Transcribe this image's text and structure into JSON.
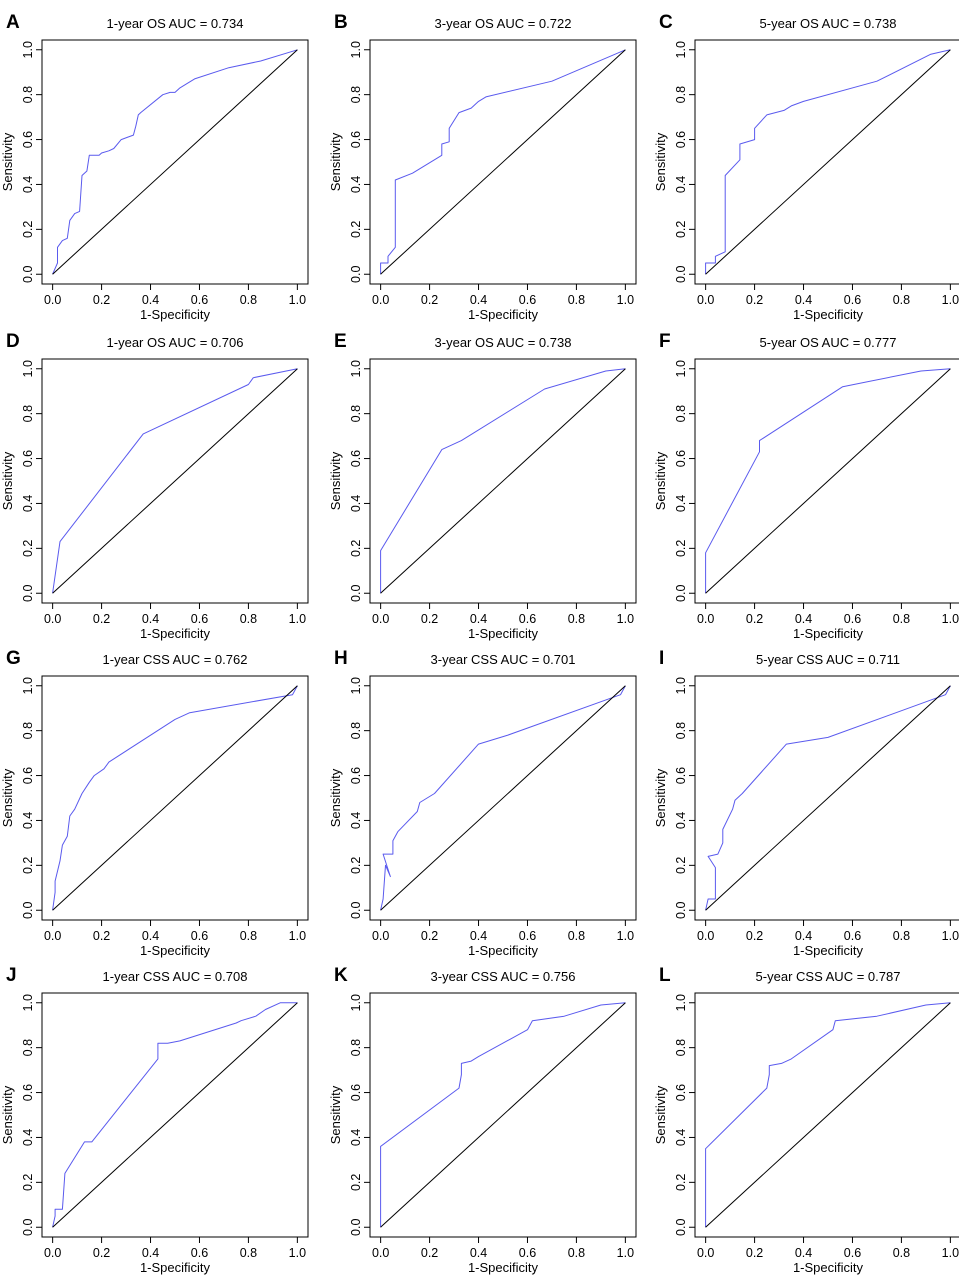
{
  "colors": {
    "roc_line": "#5a5aee",
    "diagonal": "#000000",
    "frame": "#000000",
    "background": "#ffffff"
  },
  "chart_data": [
    {
      "panel": "A",
      "type": "line",
      "title": "1-year OS AUC = 0.734",
      "xlabel": "1-Specificity",
      "ylabel": "Sensitivity",
      "xlim": [
        0,
        1
      ],
      "ylim": [
        0,
        1
      ],
      "xticks": [
        "0.0",
        "0.2",
        "0.4",
        "0.6",
        "0.8",
        "1.0"
      ],
      "yticks": [
        "0.0",
        "0.2",
        "0.4",
        "0.6",
        "0.8",
        "1.0"
      ],
      "grid": false,
      "series": [
        {
          "name": "ROC",
          "x": [
            0,
            0.02,
            0.02,
            0.04,
            0.06,
            0.07,
            0.09,
            0.11,
            0.12,
            0.14,
            0.15,
            0.19,
            0.2,
            0.23,
            0.25,
            0.28,
            0.33,
            0.34,
            0.35,
            0.36,
            0.45,
            0.48,
            0.5,
            0.52,
            0.55,
            0.58,
            0.72,
            0.85,
            1.0
          ],
          "y": [
            0,
            0.05,
            0.12,
            0.15,
            0.16,
            0.24,
            0.27,
            0.28,
            0.44,
            0.46,
            0.53,
            0.53,
            0.54,
            0.55,
            0.56,
            0.6,
            0.62,
            0.66,
            0.71,
            0.72,
            0.8,
            0.81,
            0.81,
            0.83,
            0.85,
            0.87,
            0.92,
            0.95,
            1.0
          ]
        },
        {
          "name": "Reference",
          "x": [
            0,
            1
          ],
          "y": [
            0,
            1
          ]
        }
      ]
    },
    {
      "panel": "B",
      "type": "line",
      "title": "3-year OS AUC = 0.722",
      "xlabel": "1-Specificity",
      "ylabel": "Sensitivity",
      "xlim": [
        0,
        1
      ],
      "ylim": [
        0,
        1
      ],
      "xticks": [
        "0.0",
        "0.2",
        "0.4",
        "0.6",
        "0.8",
        "1.0"
      ],
      "yticks": [
        "0.0",
        "0.2",
        "0.4",
        "0.6",
        "0.8",
        "1.0"
      ],
      "grid": false,
      "series": [
        {
          "name": "ROC",
          "x": [
            0,
            0,
            0.03,
            0.03,
            0.06,
            0.06,
            0.13,
            0.25,
            0.25,
            0.28,
            0.28,
            0.32,
            0.37,
            0.4,
            0.43,
            0.7,
            1.0
          ],
          "y": [
            0,
            0.05,
            0.05,
            0.08,
            0.12,
            0.42,
            0.45,
            0.53,
            0.58,
            0.59,
            0.65,
            0.72,
            0.74,
            0.77,
            0.79,
            0.86,
            1.0
          ]
        },
        {
          "name": "Reference",
          "x": [
            0,
            1
          ],
          "y": [
            0,
            1
          ]
        }
      ]
    },
    {
      "panel": "C",
      "type": "line",
      "title": "5-year OS AUC = 0.738",
      "xlabel": "1-Specificity",
      "ylabel": "Sensitivity",
      "xlim": [
        0,
        1
      ],
      "ylim": [
        0,
        1
      ],
      "xticks": [
        "0.0",
        "0.2",
        "0.4",
        "0.6",
        "0.8",
        "1.0"
      ],
      "yticks": [
        "0.0",
        "0.2",
        "0.4",
        "0.6",
        "0.8",
        "1.0"
      ],
      "grid": false,
      "series": [
        {
          "name": "ROC",
          "x": [
            0,
            0,
            0.04,
            0.04,
            0.08,
            0.08,
            0.14,
            0.14,
            0.2,
            0.2,
            0.25,
            0.32,
            0.35,
            0.4,
            0.7,
            0.92,
            1.0
          ],
          "y": [
            0,
            0.05,
            0.05,
            0.08,
            0.1,
            0.44,
            0.51,
            0.58,
            0.6,
            0.65,
            0.71,
            0.73,
            0.75,
            0.77,
            0.86,
            0.98,
            1.0
          ]
        },
        {
          "name": "Reference",
          "x": [
            0,
            1
          ],
          "y": [
            0,
            1
          ]
        }
      ]
    },
    {
      "panel": "D",
      "type": "line",
      "title": "1-year OS AUC = 0.706",
      "xlabel": "1-Specificity",
      "ylabel": "Sensitivity",
      "xlim": [
        0,
        1
      ],
      "ylim": [
        0,
        1
      ],
      "xticks": [
        "0.0",
        "0.2",
        "0.4",
        "0.6",
        "0.8",
        "1.0"
      ],
      "yticks": [
        "0.0",
        "0.2",
        "0.4",
        "0.6",
        "0.8",
        "1.0"
      ],
      "grid": false,
      "series": [
        {
          "name": "ROC",
          "x": [
            0,
            0.03,
            0.37,
            0.8,
            0.82,
            1.0
          ],
          "y": [
            0,
            0.23,
            0.71,
            0.93,
            0.96,
            1.0
          ]
        },
        {
          "name": "Reference",
          "x": [
            0,
            1
          ],
          "y": [
            0,
            1
          ]
        }
      ]
    },
    {
      "panel": "E",
      "type": "line",
      "title": "3-year OS AUC = 0.738",
      "xlabel": "1-Specificity",
      "ylabel": "Sensitivity",
      "xlim": [
        0,
        1
      ],
      "ylim": [
        0,
        1
      ],
      "xticks": [
        "0.0",
        "0.2",
        "0.4",
        "0.6",
        "0.8",
        "1.0"
      ],
      "yticks": [
        "0.0",
        "0.2",
        "0.4",
        "0.6",
        "0.8",
        "1.0"
      ],
      "grid": false,
      "series": [
        {
          "name": "ROC",
          "x": [
            0,
            0,
            0.25,
            0.33,
            0.67,
            0.92,
            1.0
          ],
          "y": [
            0,
            0.19,
            0.64,
            0.68,
            0.91,
            0.99,
            1.0
          ]
        },
        {
          "name": "Reference",
          "x": [
            0,
            1
          ],
          "y": [
            0,
            1
          ]
        }
      ]
    },
    {
      "panel": "F",
      "type": "line",
      "title": "5-year OS AUC = 0.777",
      "xlabel": "1-Specificity",
      "ylabel": "Sensitivity",
      "xlim": [
        0,
        1
      ],
      "ylim": [
        0,
        1
      ],
      "xticks": [
        "0.0",
        "0.2",
        "0.4",
        "0.6",
        "0.8",
        "1.0"
      ],
      "yticks": [
        "0.0",
        "0.2",
        "0.4",
        "0.6",
        "0.8",
        "1.0"
      ],
      "grid": false,
      "series": [
        {
          "name": "ROC",
          "x": [
            0,
            0,
            0.22,
            0.22,
            0.56,
            0.88,
            1.0
          ],
          "y": [
            0,
            0.18,
            0.63,
            0.68,
            0.92,
            0.99,
            1.0
          ]
        },
        {
          "name": "Reference",
          "x": [
            0,
            1
          ],
          "y": [
            0,
            1
          ]
        }
      ]
    },
    {
      "panel": "G",
      "type": "line",
      "title": "1-year CSS AUC = 0.762",
      "xlabel": "1-Specificity",
      "ylabel": "Sensitivity",
      "xlim": [
        0,
        1
      ],
      "ylim": [
        0,
        1
      ],
      "xticks": [
        "0.0",
        "0.2",
        "0.4",
        "0.6",
        "0.8",
        "1.0"
      ],
      "yticks": [
        "0.0",
        "0.2",
        "0.4",
        "0.6",
        "0.8",
        "1.0"
      ],
      "grid": false,
      "series": [
        {
          "name": "ROC",
          "x": [
            0,
            0.01,
            0.01,
            0.03,
            0.04,
            0.06,
            0.07,
            0.09,
            0.12,
            0.15,
            0.17,
            0.21,
            0.23,
            0.5,
            0.56,
            0.98,
            1.0
          ],
          "y": [
            0,
            0.08,
            0.13,
            0.22,
            0.29,
            0.33,
            0.42,
            0.45,
            0.52,
            0.57,
            0.6,
            0.63,
            0.66,
            0.85,
            0.88,
            0.96,
            1.0
          ]
        },
        {
          "name": "Reference",
          "x": [
            0,
            1
          ],
          "y": [
            0,
            1
          ]
        }
      ]
    },
    {
      "panel": "H",
      "type": "line",
      "title": "3-year CSS AUC = 0.701",
      "xlabel": "1-Specificity",
      "ylabel": "Sensitivity",
      "xlim": [
        0,
        1
      ],
      "ylim": [
        0,
        1
      ],
      "xticks": [
        "0.0",
        "0.2",
        "0.4",
        "0.6",
        "0.8",
        "1.0"
      ],
      "yticks": [
        "0.0",
        "0.2",
        "0.4",
        "0.6",
        "0.8",
        "1.0"
      ],
      "grid": false,
      "series": [
        {
          "name": "ROC",
          "x": [
            0,
            0.01,
            0.02,
            0.04,
            0.01,
            0.05,
            0.05,
            0.07,
            0.15,
            0.16,
            0.22,
            0.4,
            0.52,
            0.98,
            1.0
          ],
          "y": [
            0,
            0.05,
            0.2,
            0.15,
            0.25,
            0.25,
            0.31,
            0.35,
            0.44,
            0.48,
            0.52,
            0.74,
            0.78,
            0.96,
            1.0
          ]
        },
        {
          "name": "Reference",
          "x": [
            0,
            1
          ],
          "y": [
            0,
            1
          ]
        }
      ]
    },
    {
      "panel": "I",
      "type": "line",
      "title": "5-year CSS AUC = 0.711",
      "xlabel": "1-Specificity",
      "ylabel": "Sensitivity",
      "xlim": [
        0,
        1
      ],
      "ylim": [
        0,
        1
      ],
      "xticks": [
        "0.0",
        "0.2",
        "0.4",
        "0.6",
        "0.8",
        "1.0"
      ],
      "yticks": [
        "0.0",
        "0.2",
        "0.4",
        "0.6",
        "0.8",
        "1.0"
      ],
      "grid": false,
      "series": [
        {
          "name": "ROC",
          "x": [
            0,
            0.01,
            0.04,
            0.04,
            0.01,
            0.05,
            0.07,
            0.07,
            0.11,
            0.12,
            0.15,
            0.33,
            0.5,
            0.98,
            1.0
          ],
          "y": [
            0,
            0.05,
            0.05,
            0.19,
            0.24,
            0.25,
            0.3,
            0.36,
            0.45,
            0.49,
            0.52,
            0.74,
            0.77,
            0.96,
            1.0
          ]
        },
        {
          "name": "Reference",
          "x": [
            0,
            1
          ],
          "y": [
            0,
            1
          ]
        }
      ]
    },
    {
      "panel": "J",
      "type": "line",
      "title": "1-year CSS AUC = 0.708",
      "xlabel": "1-Specificity",
      "ylabel": "Sensitivity",
      "xlim": [
        0,
        1
      ],
      "ylim": [
        0,
        1
      ],
      "xticks": [
        "0.0",
        "0.2",
        "0.4",
        "0.6",
        "0.8",
        "1.0"
      ],
      "yticks": [
        "0.0",
        "0.2",
        "0.4",
        "0.6",
        "0.8",
        "1.0"
      ],
      "grid": false,
      "series": [
        {
          "name": "ROC",
          "x": [
            0,
            0.01,
            0.01,
            0.04,
            0.05,
            0.13,
            0.16,
            0.43,
            0.43,
            0.47,
            0.52,
            0.75,
            0.77,
            0.83,
            0.87,
            0.93,
            1.0
          ],
          "y": [
            0,
            0.05,
            0.08,
            0.08,
            0.24,
            0.38,
            0.38,
            0.75,
            0.82,
            0.82,
            0.83,
            0.91,
            0.92,
            0.94,
            0.97,
            1.0,
            1.0
          ]
        },
        {
          "name": "Reference",
          "x": [
            0,
            1
          ],
          "y": [
            0,
            1
          ]
        }
      ]
    },
    {
      "panel": "K",
      "type": "line",
      "title": "3-year CSS AUC = 0.756",
      "xlabel": "1-Specificity",
      "ylabel": "Sensitivity",
      "xlim": [
        0,
        1
      ],
      "ylim": [
        0,
        1
      ],
      "xticks": [
        "0.0",
        "0.2",
        "0.4",
        "0.6",
        "0.8",
        "1.0"
      ],
      "yticks": [
        "0.0",
        "0.2",
        "0.4",
        "0.6",
        "0.8",
        "1.0"
      ],
      "grid": false,
      "series": [
        {
          "name": "ROC",
          "x": [
            0,
            0,
            0.32,
            0.33,
            0.33,
            0.37,
            0.4,
            0.6,
            0.62,
            0.75,
            0.9,
            1.0
          ],
          "y": [
            0,
            0.36,
            0.62,
            0.68,
            0.73,
            0.74,
            0.76,
            0.88,
            0.92,
            0.94,
            0.99,
            1.0
          ]
        },
        {
          "name": "Reference",
          "x": [
            0,
            1
          ],
          "y": [
            0,
            1
          ]
        }
      ]
    },
    {
      "panel": "L",
      "type": "line",
      "title": "5-year CSS AUC = 0.787",
      "xlabel": "1-Specificity",
      "ylabel": "Sensitivity",
      "xlim": [
        0,
        1
      ],
      "ylim": [
        0,
        1
      ],
      "xticks": [
        "0.0",
        "0.2",
        "0.4",
        "0.6",
        "0.8",
        "1.0"
      ],
      "yticks": [
        "0.0",
        "0.2",
        "0.4",
        "0.6",
        "0.8",
        "1.0"
      ],
      "grid": false,
      "series": [
        {
          "name": "ROC",
          "x": [
            0,
            0,
            0.25,
            0.26,
            0.26,
            0.31,
            0.35,
            0.52,
            0.53,
            0.7,
            0.9,
            1.0
          ],
          "y": [
            0,
            0.35,
            0.62,
            0.68,
            0.72,
            0.73,
            0.75,
            0.88,
            0.92,
            0.94,
            0.99,
            1.0
          ]
        },
        {
          "name": "Reference",
          "x": [
            0,
            1
          ],
          "y": [
            0,
            1
          ]
        }
      ]
    }
  ]
}
